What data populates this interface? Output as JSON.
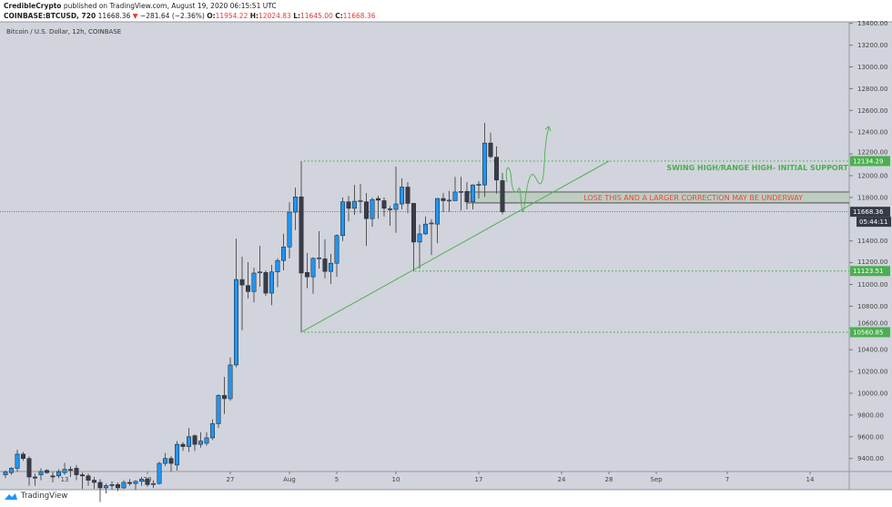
{
  "header": {
    "author": "CredibleCrypto",
    "published": "published on TradingView.com, August 19, 2020 06:15:51 UTC",
    "symbol": "COINBASE:BTCUSD, 720",
    "last": "11668.36",
    "change": "−281.64 (−2.36%)",
    "o_label": "O:",
    "o": "11954.22",
    "h_label": "H:",
    "h": "12024.83",
    "l_label": "L:",
    "l": "11645.00",
    "c_label": "C:",
    "c": "11668.36"
  },
  "footer": {
    "brand": "TradingView"
  },
  "chart_data": {
    "type": "candlestick",
    "title": "Bitcoin / U.S. Dollar, 12h, COINBASE",
    "ylim": [
      9280,
      13400
    ],
    "y_ticks": [
      "13400.00",
      "13200.00",
      "13000.00",
      "12800.00",
      "12600.00",
      "12400.00",
      "12200.00",
      "12000.00",
      "11800.00",
      "11400.00",
      "11200.00",
      "11000.00",
      "10800.00",
      "10600.00",
      "10400.00",
      "10200.00",
      "10000.00",
      "9800.00",
      "9600.00",
      "9400.00"
    ],
    "x_ticks": [
      {
        "label": "13",
        "t": "07-13 00"
      },
      {
        "label": "20",
        "t": "07-20 00"
      },
      {
        "label": "27",
        "t": "07-27 00"
      },
      {
        "label": "Aug",
        "t": "08-01 00"
      },
      {
        "label": "5",
        "t": "08-05 00"
      },
      {
        "label": "10",
        "t": "08-10 00"
      },
      {
        "label": "17",
        "t": "08-17 00"
      },
      {
        "label": "24",
        "t": "08-24 00"
      },
      {
        "label": "28",
        "t": "08-28 00"
      },
      {
        "label": "Sep",
        "t": "09-01 00"
      },
      {
        "label": "7",
        "t": "09-07 00"
      },
      {
        "label": "14",
        "t": "09-14 00"
      }
    ],
    "colors": {
      "up": "#2196f3",
      "down": "#3a3d48",
      "annotation_green": "#4caf50",
      "annotation_red": "#f44336",
      "zone": "#b9cbbb"
    },
    "candles": [
      [
        "07-08 00",
        9250,
        9290,
        9220,
        9275
      ],
      [
        "07-08 12",
        9270,
        9320,
        9250,
        9310
      ],
      [
        "07-09 00",
        9310,
        9480,
        9280,
        9440
      ],
      [
        "07-09 12",
        9440,
        9460,
        9380,
        9400
      ],
      [
        "07-10 00",
        9400,
        9420,
        9150,
        9230
      ],
      [
        "07-10 12",
        9230,
        9260,
        9150,
        9220
      ],
      [
        "07-11 00",
        9250,
        9310,
        9200,
        9280
      ],
      [
        "07-11 12",
        9290,
        9300,
        9260,
        9270
      ],
      [
        "07-12 00",
        9240,
        9280,
        9180,
        9230
      ],
      [
        "07-12 12",
        9240,
        9300,
        9220,
        9280
      ],
      [
        "07-13 00",
        9270,
        9360,
        9250,
        9300
      ],
      [
        "07-13 12",
        9300,
        9330,
        9230,
        9290
      ],
      [
        "07-14 00",
        9310,
        9340,
        9200,
        9250
      ],
      [
        "07-14 12",
        9250,
        9270,
        9120,
        9240
      ],
      [
        "07-15 00",
        9240,
        9260,
        9150,
        9200
      ],
      [
        "07-15 12",
        9200,
        9230,
        9120,
        9180
      ],
      [
        "07-16 00",
        9180,
        9210,
        9000,
        9130
      ],
      [
        "07-16 12",
        9130,
        9170,
        9080,
        9150
      ],
      [
        "07-17 00",
        9150,
        9190,
        9110,
        9160
      ],
      [
        "07-17 12",
        9160,
        9180,
        9100,
        9130
      ],
      [
        "07-18 00",
        9130,
        9200,
        9120,
        9180
      ],
      [
        "07-18 12",
        9180,
        9210,
        9150,
        9170
      ],
      [
        "07-19 00",
        9170,
        9200,
        9110,
        9190
      ],
      [
        "07-19 12",
        9190,
        9230,
        9150,
        9210
      ],
      [
        "07-20 00",
        9210,
        9220,
        9140,
        9160
      ],
      [
        "07-20 12",
        9160,
        9200,
        9130,
        9170
      ],
      [
        "07-21 00",
        9170,
        9370,
        9160,
        9355
      ],
      [
        "07-21 12",
        9355,
        9450,
        9330,
        9400
      ],
      [
        "07-22 00",
        9400,
        9420,
        9280,
        9355
      ],
      [
        "07-22 12",
        9340,
        9560,
        9290,
        9530
      ],
      [
        "07-23 00",
        9530,
        9550,
        9470,
        9510
      ],
      [
        "07-23 12",
        9510,
        9680,
        9460,
        9600
      ],
      [
        "07-24 00",
        9610,
        9620,
        9470,
        9530
      ],
      [
        "07-24 12",
        9530,
        9640,
        9500,
        9560
      ],
      [
        "07-25 00",
        9540,
        9640,
        9520,
        9590
      ],
      [
        "07-25 12",
        9590,
        9760,
        9570,
        9720
      ],
      [
        "07-26 00",
        9720,
        9990,
        9680,
        9980
      ],
      [
        "07-26 12",
        9980,
        10150,
        9810,
        9950
      ],
      [
        "07-27 00",
        9950,
        10330,
        9930,
        10260
      ],
      [
        "07-27 12",
        10260,
        11420,
        10240,
        11045
      ],
      [
        "07-28 00",
        11045,
        11255,
        10580,
        10995
      ],
      [
        "07-28 12",
        10990,
        11205,
        10870,
        10935
      ],
      [
        "07-29 00",
        10935,
        11155,
        10835,
        11105
      ],
      [
        "07-29 12",
        11110,
        11355,
        10980,
        11115
      ],
      [
        "07-30 00",
        11110,
        11130,
        10895,
        10920
      ],
      [
        "07-30 12",
        10920,
        11180,
        10810,
        11115
      ],
      [
        "07-31 00",
        11115,
        11240,
        10975,
        11220
      ],
      [
        "07-31 12",
        11220,
        11465,
        11130,
        11345
      ],
      [
        "08-01 00",
        11345,
        11755,
        11240,
        11665
      ],
      [
        "08-01 12",
        11665,
        11890,
        11500,
        11805
      ],
      [
        "08-02 00",
        11805,
        12135,
        10560,
        11105
      ],
      [
        "08-02 12",
        11110,
        11290,
        10965,
        11070
      ],
      [
        "08-03 00",
        11070,
        11250,
        10915,
        11240
      ],
      [
        "08-03 12",
        11240,
        11490,
        11145,
        11245
      ],
      [
        "08-04 00",
        11235,
        11415,
        11055,
        11120
      ],
      [
        "08-04 12",
        11120,
        11280,
        11005,
        11195
      ],
      [
        "08-05 00",
        11195,
        11460,
        11070,
        11450
      ],
      [
        "08-05 12",
        11450,
        11800,
        11400,
        11760
      ],
      [
        "08-06 00",
        11760,
        11815,
        11580,
        11700
      ],
      [
        "08-06 12",
        11700,
        11915,
        11640,
        11765
      ],
      [
        "08-07 00",
        11765,
        11925,
        11655,
        11770
      ],
      [
        "08-07 12",
        11760,
        11840,
        11355,
        11605
      ],
      [
        "08-08 00",
        11605,
        11800,
        11530,
        11780
      ],
      [
        "08-08 12",
        11790,
        11815,
        11605,
        11775
      ],
      [
        "08-09 00",
        11770,
        11800,
        11625,
        11700
      ],
      [
        "08-09 12",
        11695,
        11720,
        11540,
        11690
      ],
      [
        "08-10 00",
        11690,
        12085,
        11475,
        11740
      ],
      [
        "08-10 12",
        11740,
        11975,
        11690,
        11895
      ],
      [
        "08-11 00",
        11895,
        11940,
        11655,
        11745
      ],
      [
        "08-11 12",
        11745,
        11750,
        11120,
        11390
      ],
      [
        "08-12 00",
        11390,
        11550,
        11145,
        11465
      ],
      [
        "08-12 12",
        11465,
        11625,
        11455,
        11555
      ],
      [
        "08-13 00",
        11560,
        11600,
        11270,
        11565
      ],
      [
        "08-13 12",
        11555,
        11795,
        11380,
        11790
      ],
      [
        "08-14 00",
        11790,
        11840,
        11665,
        11770
      ],
      [
        "08-14 12",
        11770,
        11860,
        11665,
        11775
      ],
      [
        "08-15 00",
        11770,
        11990,
        11775,
        11850
      ],
      [
        "08-15 12",
        11850,
        11990,
        11680,
        11855
      ],
      [
        "08-16 00",
        11855,
        11940,
        11690,
        11760
      ],
      [
        "08-16 12",
        11760,
        11920,
        11690,
        11915
      ],
      [
        "08-17 00",
        11915,
        11950,
        11790,
        11920
      ],
      [
        "08-17 12",
        11915,
        12485,
        11805,
        12300
      ],
      [
        "08-18 00",
        12300,
        12395,
        12160,
        12175
      ],
      [
        "08-18 12",
        12170,
        12270,
        11835,
        11960
      ],
      [
        "08-19 00",
        11954.22,
        12024.83,
        11645,
        11668.36
      ]
    ],
    "price_labels": [
      {
        "value": "12134.29",
        "kind": "green"
      },
      {
        "value": "11668.36",
        "kind": "last"
      },
      {
        "value": "05:44:11",
        "kind": "countdown"
      },
      {
        "value": "11123.51",
        "kind": "green"
      },
      {
        "value": "10560.85",
        "kind": "green"
      }
    ],
    "annotations": {
      "swing_high": "SWING HIGH/RANGE HIGH- INITIAL SUPPORT",
      "lose_this": "LOSE THIS AND A LARGER CORRECTION MAY BE UNDERWAY",
      "levels": [
        12134.29,
        11123.51,
        10560.85
      ],
      "zone": [
        11750,
        11850
      ],
      "trendline": [
        {
          "t": "08-02 00",
          "p": 10560.85
        },
        {
          "t": "08-28 00",
          "p": 12134.29
        }
      ]
    }
  }
}
